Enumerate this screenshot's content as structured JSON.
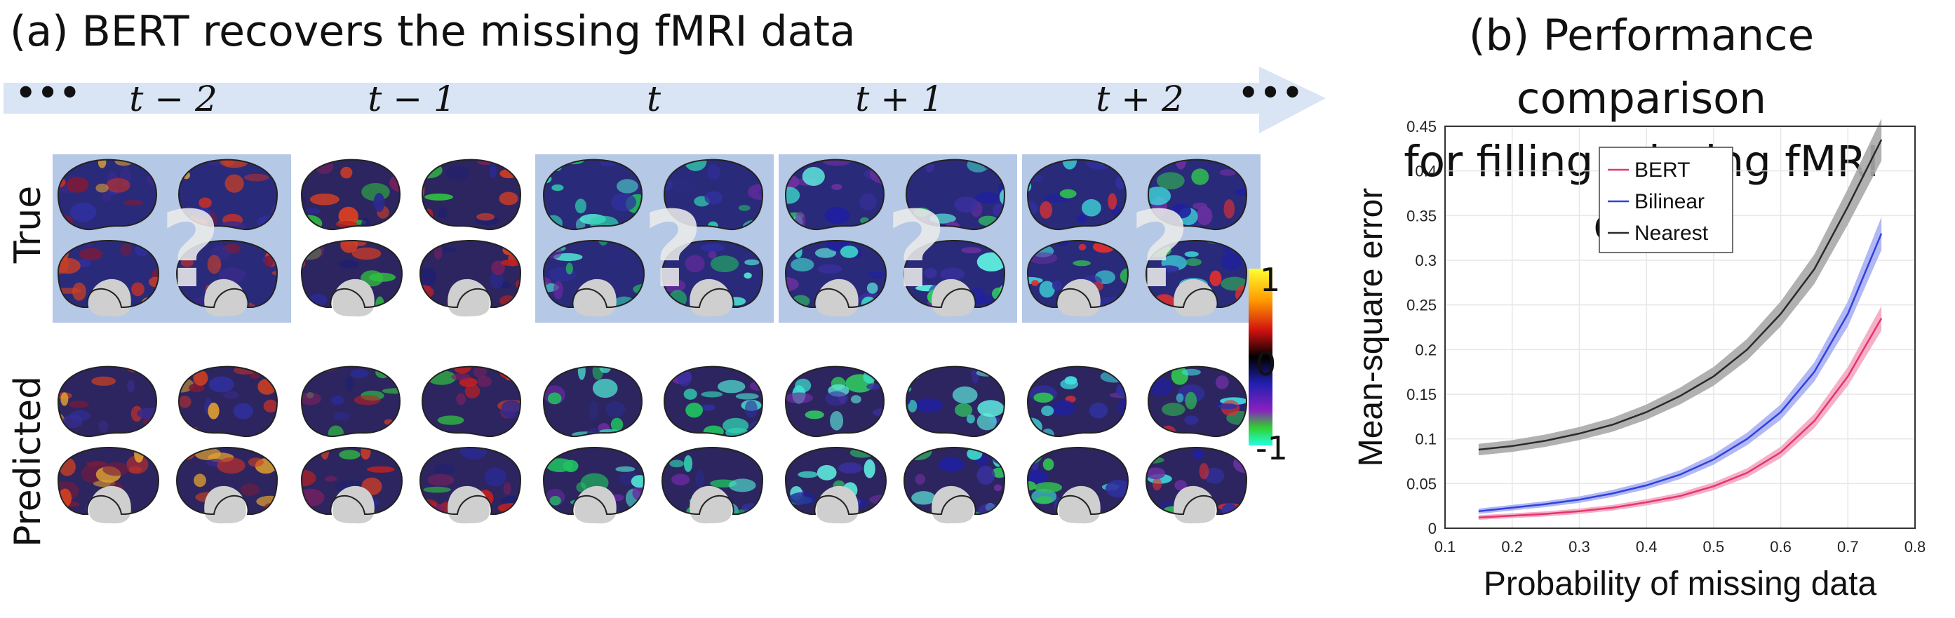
{
  "panel_a": {
    "title": "(a) BERT recovers the missing fMRI data",
    "ellipsis_left": "•••",
    "ellipsis_right": "•••",
    "time_labels": [
      "t − 2",
      "t − 1",
      "t",
      "t + 1",
      "t + 2"
    ],
    "row_labels": {
      "true": "True",
      "predicted": "Predicted"
    },
    "question_mark": "?",
    "colorbar": {
      "max_label": "1",
      "mid_label": "0",
      "min_label": "-1"
    }
  },
  "panel_b": {
    "title_line1": "(b) Performance comparison",
    "title_line2": "for filling missing fMRI data"
  },
  "chart_data": {
    "type": "line",
    "title": "",
    "xlabel": "Probability of missing data",
    "ylabel": "Mean-square error",
    "xlim": [
      0.1,
      0.8
    ],
    "ylim": [
      0,
      0.45
    ],
    "xticks": [
      "0.1",
      "0.2",
      "0.3",
      "0.4",
      "0.5",
      "0.6",
      "0.7",
      "0.8"
    ],
    "yticks": [
      "0",
      "0.05",
      "0.1",
      "0.15",
      "0.2",
      "0.25",
      "0.3",
      "0.35",
      "0.4",
      "0.45"
    ],
    "grid": true,
    "legend_position": "top-right",
    "x": [
      0.15,
      0.2,
      0.25,
      0.3,
      0.35,
      0.4,
      0.45,
      0.5,
      0.55,
      0.6,
      0.65,
      0.7,
      0.75
    ],
    "series": [
      {
        "name": "BERT",
        "color": "#e8336a",
        "band_color": "#f3a7c2",
        "values": [
          0.012,
          0.014,
          0.016,
          0.019,
          0.023,
          0.029,
          0.036,
          0.047,
          0.062,
          0.085,
          0.12,
          0.17,
          0.235
        ]
      },
      {
        "name": "Bilinear",
        "color": "#3040e0",
        "band_color": "#a9b0f2",
        "values": [
          0.019,
          0.023,
          0.027,
          0.032,
          0.039,
          0.048,
          0.06,
          0.077,
          0.1,
          0.13,
          0.175,
          0.24,
          0.33
        ]
      },
      {
        "name": "Nearest",
        "color": "#2a2a2a",
        "band_color": "#a8a8a8",
        "values": [
          0.088,
          0.092,
          0.098,
          0.106,
          0.116,
          0.13,
          0.148,
          0.17,
          0.2,
          0.24,
          0.29,
          0.36,
          0.435
        ]
      }
    ]
  }
}
